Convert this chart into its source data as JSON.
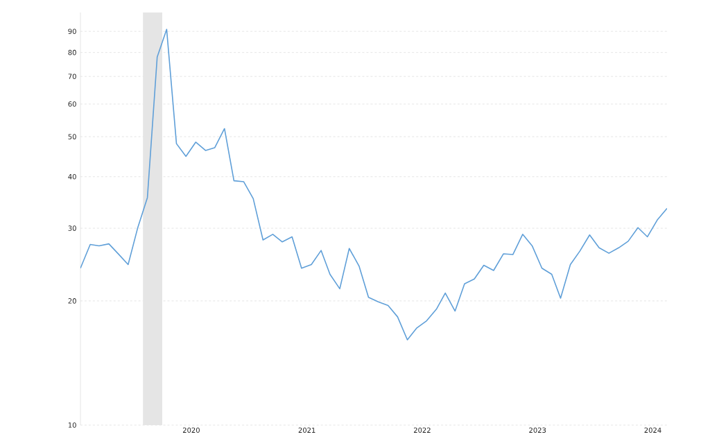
{
  "chart_data": {
    "type": "line",
    "log": "y",
    "grid": "y",
    "line_style": "solid",
    "marker": "none",
    "x": [
      "2019-01-15",
      "2019-02-15",
      "2019-03-15",
      "2019-04-15",
      "2019-05-15",
      "2019-06-15",
      "2019-07-15",
      "2019-08-15",
      "2019-09-15",
      "2019-10-15",
      "2019-11-15",
      "2019-12-15",
      "2020-01-15",
      "2020-02-15",
      "2020-03-15",
      "2020-04-15",
      "2020-05-15",
      "2020-06-15",
      "2020-07-15",
      "2020-08-15",
      "2020-09-15",
      "2020-10-15",
      "2020-11-15",
      "2020-12-15",
      "2021-01-15",
      "2021-02-15",
      "2021-03-15",
      "2021-04-15",
      "2021-05-15",
      "2021-06-15",
      "2021-07-15",
      "2021-08-15",
      "2021-09-15",
      "2021-10-15",
      "2021-11-15",
      "2021-12-15",
      "2022-01-15",
      "2022-02-15",
      "2022-03-15",
      "2022-04-15",
      "2022-05-15",
      "2022-06-15",
      "2022-07-15",
      "2022-08-15",
      "2022-09-15",
      "2022-10-15",
      "2022-11-15",
      "2022-12-15",
      "2023-01-15",
      "2023-02-15",
      "2023-03-15",
      "2023-04-15",
      "2023-05-15",
      "2023-06-15",
      "2023-07-15",
      "2023-08-15",
      "2023-09-15",
      "2023-10-15",
      "2023-11-15",
      "2023-12-15",
      "2024-01-15",
      "2024-02-15"
    ],
    "series": [
      {
        "color": "#5f9fd8",
        "values": [
          24.0,
          27.4,
          27.2,
          27.5,
          26.0,
          24.5,
          30.0,
          35.6,
          78,
          91,
          48.1,
          44.8,
          48.5,
          46.3,
          47.0,
          52.3,
          39.1,
          38.9,
          35.4,
          28.1,
          29.0,
          27.8,
          28.6,
          24.0,
          24.5,
          26.5,
          23.2,
          21.4,
          26.8,
          24.3,
          20.4,
          19.9,
          19.5,
          18.3,
          16.1,
          17.2,
          17.9,
          19.1,
          20.9,
          18.9,
          22.0,
          22.6,
          24.4,
          23.7,
          26.0,
          25.9,
          29.0,
          27.2,
          24.0,
          23.2,
          20.3,
          24.5,
          26.4,
          28.9,
          26.9,
          26.1,
          26.9,
          27.9,
          30.1,
          28.6,
          31.4,
          33.5
        ]
      }
    ],
    "xlim": [
      "2019-01-15",
      "2024-02-15"
    ],
    "xticks": [
      {
        "value": "2020-01-01",
        "label": "2020"
      },
      {
        "value": "2021-01-01",
        "label": "2021"
      },
      {
        "value": "2022-01-01",
        "label": "2022"
      },
      {
        "value": "2023-01-01",
        "label": "2023"
      },
      {
        "value": "2024-01-01",
        "label": "2024"
      }
    ],
    "ylim": [
      10,
      100
    ],
    "yticks": [
      10,
      20,
      30,
      40,
      50,
      60,
      70,
      80,
      90
    ],
    "bands": [
      {
        "axis": "x",
        "from": "2019-08-01",
        "to": "2019-10-01",
        "color": "#e5e5e5"
      }
    ]
  }
}
